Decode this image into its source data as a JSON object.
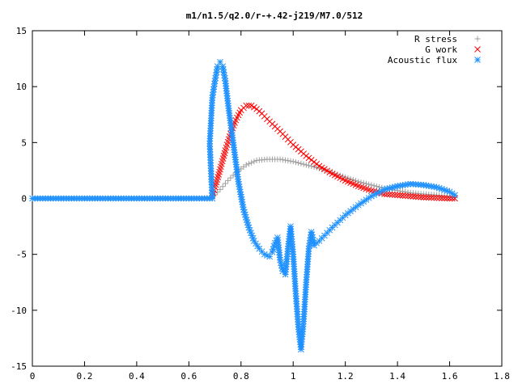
{
  "chart_data": {
    "type": "scatter",
    "title": "m1/n1.5/q2.0/r-+.42-j219/M7.0/512",
    "xlabel": "",
    "ylabel": "",
    "xlim": [
      0,
      1.8
    ],
    "ylim": [
      -15,
      15
    ],
    "x_ticks": [
      0,
      0.2,
      0.4,
      0.6,
      0.8,
      1,
      1.2,
      1.4,
      1.6,
      1.8
    ],
    "x_tick_labels": [
      "0",
      "0.2",
      "0.4",
      "0.6",
      "0.8",
      "1",
      "1.2",
      "1.4",
      "1.6",
      "1.8"
    ],
    "y_ticks": [
      -15,
      -10,
      -5,
      0,
      5,
      10,
      15
    ],
    "y_tick_labels": [
      "-15",
      "-10",
      "-5",
      "0",
      "5",
      "10",
      "15"
    ],
    "grid": false,
    "legend_position": "top-right",
    "series": [
      {
        "name": "R stress",
        "color": "#a0a0a0",
        "marker": "plus",
        "x": [
          0.0,
          0.05,
          0.1,
          0.15,
          0.2,
          0.25,
          0.3,
          0.35,
          0.4,
          0.45,
          0.5,
          0.55,
          0.6,
          0.65,
          0.69,
          0.72,
          0.75,
          0.78,
          0.82,
          0.86,
          0.9,
          0.95,
          1.0,
          1.05,
          1.1,
          1.15,
          1.2,
          1.25,
          1.3,
          1.35,
          1.4,
          1.45,
          1.5,
          1.55,
          1.6,
          1.62
        ],
        "y": [
          0,
          0,
          0,
          0,
          0,
          0,
          0,
          0,
          0,
          0,
          0,
          0,
          0,
          0,
          0.1,
          0.8,
          1.6,
          2.3,
          3.0,
          3.4,
          3.5,
          3.5,
          3.3,
          3.0,
          2.7,
          2.3,
          1.9,
          1.5,
          1.2,
          0.9,
          0.7,
          0.5,
          0.4,
          0.3,
          0.2,
          0.1
        ]
      },
      {
        "name": "G work",
        "color": "#ff0000",
        "marker": "cross",
        "x": [
          0.69,
          0.7,
          0.72,
          0.74,
          0.76,
          0.78,
          0.8,
          0.82,
          0.84,
          0.86,
          0.88,
          0.9,
          0.95,
          1.0,
          1.05,
          1.1,
          1.15,
          1.2,
          1.25,
          1.3,
          1.35,
          1.4,
          1.45,
          1.5,
          1.55,
          1.6,
          1.62
        ],
        "y": [
          0.2,
          1.0,
          2.6,
          4.3,
          5.8,
          7.0,
          7.9,
          8.3,
          8.3,
          8.0,
          7.6,
          7.1,
          6.0,
          4.8,
          3.8,
          2.9,
          2.2,
          1.6,
          1.1,
          0.7,
          0.4,
          0.3,
          0.2,
          0.1,
          0.05,
          0.0,
          0.0
        ]
      },
      {
        "name": "Acoustic flux",
        "color": "#1e90ff",
        "marker": "star",
        "x": [
          0.0,
          0.05,
          0.1,
          0.15,
          0.2,
          0.25,
          0.3,
          0.35,
          0.4,
          0.45,
          0.5,
          0.55,
          0.6,
          0.65,
          0.69,
          0.68,
          0.69,
          0.7,
          0.71,
          0.72,
          0.73,
          0.74,
          0.75,
          0.77,
          0.79,
          0.81,
          0.83,
          0.85,
          0.87,
          0.89,
          0.91,
          0.92,
          0.93,
          0.94,
          0.95,
          0.96,
          0.97,
          0.98,
          0.99,
          1.0,
          1.01,
          1.02,
          1.03,
          1.04,
          1.05,
          1.06,
          1.07,
          1.08,
          1.1,
          1.15,
          1.2,
          1.25,
          1.3,
          1.35,
          1.4,
          1.45,
          1.5,
          1.55,
          1.6,
          1.62
        ],
        "y": [
          0,
          0,
          0,
          0,
          0,
          0,
          0,
          0,
          0,
          0,
          0,
          0,
          0,
          0,
          0,
          4.9,
          9.0,
          10.5,
          11.8,
          12.2,
          11.8,
          10.5,
          8.5,
          5.0,
          1.5,
          -1.0,
          -2.6,
          -3.8,
          -4.5,
          -5.0,
          -5.2,
          -4.8,
          -4.0,
          -3.5,
          -5.5,
          -6.5,
          -6.8,
          -4.5,
          -2.5,
          -5.0,
          -8.5,
          -11.5,
          -13.5,
          -11.0,
          -7.5,
          -4.5,
          -3.0,
          -4.2,
          -3.8,
          -2.6,
          -1.5,
          -0.6,
          0.2,
          0.8,
          1.1,
          1.3,
          1.2,
          1.0,
          0.6,
          0.3
        ]
      }
    ]
  }
}
